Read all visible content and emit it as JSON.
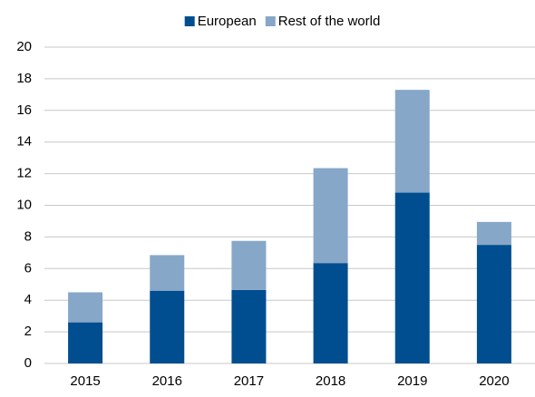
{
  "chart_data": {
    "type": "stacked_bar",
    "categories": [
      "2015",
      "2016",
      "2017",
      "2018",
      "2019",
      "2020"
    ],
    "series": [
      {
        "name": "European",
        "color": "#004e8f",
        "values": [
          2.6,
          4.6,
          4.65,
          6.35,
          10.8,
          7.5
        ]
      },
      {
        "name": "Rest of the world",
        "color": "#87a7c8",
        "values": [
          1.9,
          2.25,
          3.1,
          6.0,
          6.5,
          1.45
        ]
      }
    ],
    "ylim": [
      0,
      20
    ],
    "yticks": [
      0,
      2,
      4,
      6,
      8,
      10,
      12,
      14,
      16,
      18,
      20
    ],
    "grid": true,
    "legend": "top"
  }
}
